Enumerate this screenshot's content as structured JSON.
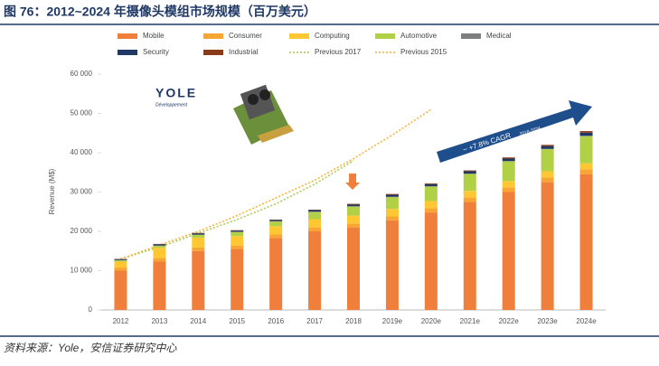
{
  "header": {
    "title": "图 76：2012~2024 年摄像头模组市场规模（百万美元）"
  },
  "footer": {
    "source": "资料来源：Yole，安信证券研究中心"
  },
  "chart_data": {
    "type": "bar",
    "stacked": true,
    "y_label": "Revenue (M$)",
    "logo": {
      "name": "YOLE",
      "subtitle": "Développement"
    },
    "annotation": {
      "text": "~ +7.8% CAGR",
      "sub": "2018-2024"
    },
    "categories": [
      "2012",
      "2013",
      "2014",
      "2015",
      "2016",
      "2017",
      "2018",
      "2019e",
      "2020e",
      "2021e",
      "2022e",
      "2023e",
      "2024e"
    ],
    "ylim": [
      0,
      60000
    ],
    "yticks": [
      0,
      {
        "value": 10000,
        "label": "10 000"
      },
      {
        "value": 20000,
        "label": "20 000"
      },
      {
        "value": 30000,
        "label": "30 000"
      },
      {
        "value": 40000,
        "label": "40 000"
      },
      {
        "value": 50000,
        "label": "50 000"
      },
      {
        "value": 60000,
        "label": "60 000"
      }
    ],
    "series": [
      {
        "name": "Mobile",
        "color": "#f07f3c",
        "values": [
          10000,
          12300,
          15000,
          15500,
          18300,
          20000,
          21000,
          22800,
          24800,
          27500,
          30000,
          32500,
          34500
        ]
      },
      {
        "name": "Consumer",
        "color": "#f9a533",
        "values": [
          800,
          900,
          900,
          900,
          900,
          1000,
          1000,
          1000,
          1100,
          1100,
          1200,
          1200,
          1300
        ]
      },
      {
        "name": "Computing",
        "color": "#ffc832",
        "values": [
          1500,
          2600,
          2500,
          2400,
          2100,
          2100,
          2000,
          1900,
          1800,
          1700,
          1600,
          1600,
          1500
        ]
      },
      {
        "name": "Automotive",
        "color": "#b1d046",
        "values": [
          300,
          500,
          700,
          1000,
          1200,
          1800,
          2300,
          3000,
          3700,
          4300,
          5000,
          5600,
          6900
        ]
      },
      {
        "name": "Medical",
        "color": "#7f7f7f",
        "values": [
          100,
          100,
          100,
          100,
          100,
          100,
          100,
          100,
          100,
          100,
          100,
          100,
          100
        ]
      },
      {
        "name": "Security",
        "color": "#1f3864",
        "values": [
          200,
          300,
          300,
          300,
          300,
          400,
          400,
          500,
          500,
          600,
          600,
          700,
          800
        ]
      },
      {
        "name": "Industrial",
        "color": "#8b3a1a",
        "values": [
          100,
          100,
          100,
          100,
          100,
          100,
          200,
          200,
          200,
          200,
          300,
          300,
          400
        ]
      },
      {
        "name": "Previous 2017",
        "type": "line",
        "dotted": true,
        "color": "#a8c94a",
        "values": [
          13000,
          16000,
          19500,
          23000,
          27000,
          32000,
          38000,
          null,
          null,
          null,
          null,
          null,
          null
        ]
      },
      {
        "name": "Previous 2015",
        "type": "line",
        "dotted": true,
        "color": "#f8b030",
        "values": [
          13000,
          16500,
          20000,
          24000,
          28500,
          33000,
          38500,
          44500,
          51000,
          null,
          null,
          null,
          null
        ]
      }
    ]
  }
}
